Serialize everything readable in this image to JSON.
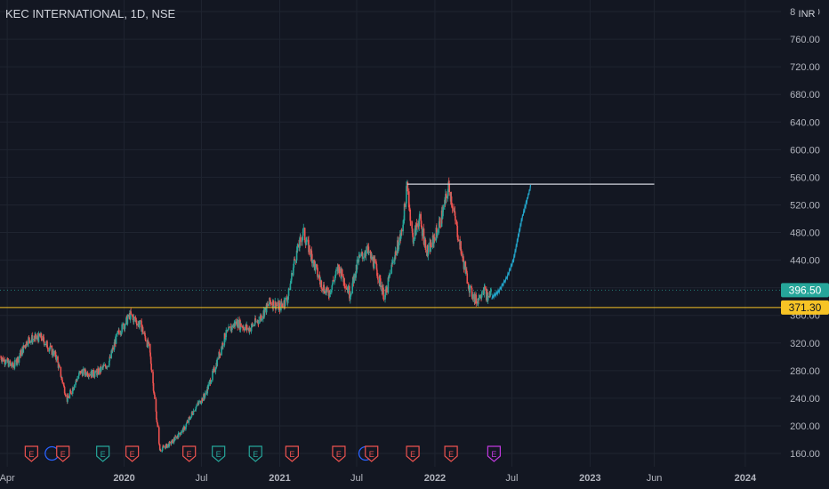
{
  "header": {
    "title": "KEC INTERNATIONAL, 1D, NSE"
  },
  "currency": "INR",
  "price_labels": {
    "last": {
      "value": "396.50",
      "color": "#26a69a"
    },
    "level": {
      "value": "371.30",
      "color": "#f7c325"
    }
  },
  "events": [
    {
      "label": "E",
      "date": "2019-05-28",
      "kind": "earnings-red"
    },
    {
      "label": "E",
      "date": "2019-08-10",
      "kind": "earnings-red"
    },
    {
      "label": "E",
      "date": "2019-11-12",
      "kind": "earnings-green"
    },
    {
      "label": "E",
      "date": "2020-01-20",
      "kind": "earnings-red"
    },
    {
      "label": "E",
      "date": "2020-06-02",
      "kind": "earnings-red"
    },
    {
      "label": "E",
      "date": "2020-08-10",
      "kind": "earnings-green"
    },
    {
      "label": "E",
      "date": "2020-11-05",
      "kind": "earnings-green"
    },
    {
      "label": "E",
      "date": "2021-01-30",
      "kind": "earnings-red"
    },
    {
      "label": "E",
      "date": "2021-05-20",
      "kind": "earnings-red"
    },
    {
      "label": "E",
      "date": "2021-08-05",
      "kind": "earnings-red"
    },
    {
      "label": "E",
      "date": "2021-11-10",
      "kind": "earnings-red"
    },
    {
      "label": "E",
      "date": "2022-02-08",
      "kind": "earnings-red"
    },
    {
      "label": "E",
      "date": "2022-05-20",
      "kind": "earnings-purple"
    }
  ],
  "dividends": [
    {
      "date": "2019-07-15"
    },
    {
      "date": "2021-07-22"
    }
  ],
  "chart_data": {
    "type": "candlestick",
    "title": "KEC INTERNATIONAL, 1D, NSE",
    "xlim": [
      "2019-03-15",
      "2024-03-25"
    ],
    "ylim": [
      150,
      805
    ],
    "x_tick_labels": [
      {
        "label": "Apr",
        "date": "2019-04-01"
      },
      {
        "label": "2020",
        "date": "2020-01-01"
      },
      {
        "label": "Jul",
        "date": "2020-07-01"
      },
      {
        "label": "2021",
        "date": "2021-01-01"
      },
      {
        "label": "Jul",
        "date": "2021-07-01"
      },
      {
        "label": "2022",
        "date": "2022-01-01"
      },
      {
        "label": "Jul",
        "date": "2022-07-01"
      },
      {
        "label": "2023",
        "date": "2023-01-01"
      },
      {
        "label": "Jun",
        "date": "2023-06-01"
      },
      {
        "label": "2024",
        "date": "2024-01-01"
      }
    ],
    "y_tick_labels": [
      "160.00",
      "200.00",
      "240.00",
      "280.00",
      "320.00",
      "360.00",
      "400.00",
      "440.00",
      "480.00",
      "520.00",
      "560.00",
      "600.00",
      "640.00",
      "680.00",
      "720.00",
      "760.00",
      "800.00"
    ],
    "y_ticks": [
      160,
      200,
      240,
      280,
      320,
      360,
      400,
      440,
      480,
      520,
      560,
      600,
      640,
      680,
      720,
      760,
      800
    ],
    "price_path": [
      [
        "2019-03-15",
        300
      ],
      [
        "2019-04-15",
        285
      ],
      [
        "2019-05-20",
        325
      ],
      [
        "2019-06-20",
        328
      ],
      [
        "2019-07-25",
        300
      ],
      [
        "2019-08-20",
        238
      ],
      [
        "2019-09-20",
        278
      ],
      [
        "2019-10-25",
        275
      ],
      [
        "2019-11-25",
        290
      ],
      [
        "2019-12-15",
        330
      ],
      [
        "2020-01-15",
        360
      ],
      [
        "2020-02-10",
        345
      ],
      [
        "2020-03-01",
        310
      ],
      [
        "2020-03-25",
        165
      ],
      [
        "2020-04-20",
        175
      ],
      [
        "2020-05-20",
        195
      ],
      [
        "2020-06-15",
        225
      ],
      [
        "2020-07-10",
        245
      ],
      [
        "2020-08-05",
        290
      ],
      [
        "2020-08-25",
        330
      ],
      [
        "2020-09-20",
        350
      ],
      [
        "2020-10-20",
        340
      ],
      [
        "2020-11-15",
        355
      ],
      [
        "2020-12-10",
        380
      ],
      [
        "2020-12-31",
        372
      ],
      [
        "2021-01-20",
        385
      ],
      [
        "2021-02-05",
        440
      ],
      [
        "2021-02-25",
        480
      ],
      [
        "2021-03-15",
        450
      ],
      [
        "2021-04-05",
        410
      ],
      [
        "2021-04-25",
        390
      ],
      [
        "2021-05-20",
        430
      ],
      [
        "2021-06-15",
        390
      ],
      [
        "2021-07-05",
        440
      ],
      [
        "2021-07-25",
        455
      ],
      [
        "2021-08-15",
        430
      ],
      [
        "2021-09-05",
        385
      ],
      [
        "2021-09-25",
        440
      ],
      [
        "2021-10-15",
        480
      ],
      [
        "2021-10-28",
        548
      ],
      [
        "2021-11-10",
        470
      ],
      [
        "2021-11-25",
        500
      ],
      [
        "2021-12-15",
        450
      ],
      [
        "2022-01-05",
        480
      ],
      [
        "2022-01-20",
        510
      ],
      [
        "2022-02-03",
        548
      ],
      [
        "2022-02-20",
        490
      ],
      [
        "2022-03-08",
        440
      ],
      [
        "2022-03-25",
        395
      ],
      [
        "2022-04-10",
        380
      ],
      [
        "2022-04-25",
        400
      ],
      [
        "2022-05-05",
        385
      ],
      [
        "2022-05-15",
        397
      ]
    ],
    "projection": [
      [
        "2022-05-15",
        385
      ],
      [
        "2022-06-01",
        395
      ],
      [
        "2022-06-20",
        415
      ],
      [
        "2022-07-05",
        440
      ],
      [
        "2022-07-15",
        470
      ],
      [
        "2022-07-25",
        500
      ],
      [
        "2022-08-05",
        525
      ],
      [
        "2022-08-15",
        548
      ]
    ],
    "resistance_line": {
      "value": 550,
      "from": "2021-10-28",
      "to": "2023-06-01"
    },
    "support_line": {
      "value": 371.3
    },
    "last_price": 396.5,
    "grid": true,
    "colors": {
      "up": "#26a69a",
      "down": "#ef5350",
      "projection": "#22a3c8",
      "resistance": "#d1d4dc",
      "support": "#f7c325",
      "grid": "#1f2430",
      "background": "#131722"
    }
  }
}
